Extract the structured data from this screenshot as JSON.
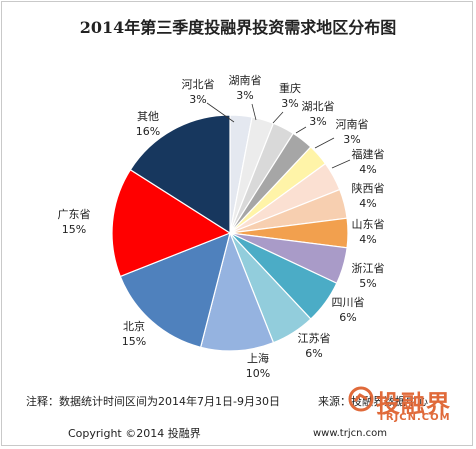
{
  "title": "2014年第三季度投融界投资需求地区分布图",
  "chart_data": {
    "type": "pie",
    "title": "2014年第三季度投融界投资需求地区分布图",
    "slices": [
      {
        "label": "河北省",
        "value": 3,
        "value_text": "3%",
        "color": "#e4e8f0"
      },
      {
        "label": "湖南省",
        "value": 3,
        "value_text": "3%",
        "color": "#ececec"
      },
      {
        "label": "重庆",
        "value": 3,
        "value_text": "3%",
        "color": "#d9d9d9"
      },
      {
        "label": "湖北省",
        "value": 3,
        "value_text": "3%",
        "color": "#a6a6a6"
      },
      {
        "label": "河南省",
        "value": 3,
        "value_text": "3%",
        "color": "#fff4a8"
      },
      {
        "label": "福建省",
        "value": 4,
        "value_text": "4%",
        "color": "#fbe0d2"
      },
      {
        "label": "陕西省",
        "value": 4,
        "value_text": "4%",
        "color": "#f7cfb0"
      },
      {
        "label": "山东省",
        "value": 4,
        "value_text": "4%",
        "color": "#f2a04e"
      },
      {
        "label": "浙江省",
        "value": 5,
        "value_text": "5%",
        "color": "#a99bc8"
      },
      {
        "label": "四川省",
        "value": 6,
        "value_text": "6%",
        "color": "#4bacc6"
      },
      {
        "label": "江苏省",
        "value": 6,
        "value_text": "6%",
        "color": "#92cddc"
      },
      {
        "label": "上海",
        "value": 10,
        "value_text": "10%",
        "color": "#95b3e0"
      },
      {
        "label": "北京",
        "value": 15,
        "value_text": "15%",
        "color": "#4f81bd"
      },
      {
        "label": "广东省",
        "value": 15,
        "value_text": "15%",
        "color": "#ff0000"
      },
      {
        "label": "其他",
        "value": 16,
        "value_text": "16%",
        "color": "#17375e"
      }
    ]
  },
  "footer": {
    "note": "注释：数据统计时间区间为2014年7月1日-9月30日",
    "source": "来源：投融界数据中心",
    "copyright": "Copyright ©2014 投融界",
    "site": "www.trjcn.com"
  },
  "logo": {
    "text": "投融界",
    "url": "TRJCN.COM",
    "color": "#e06a3a"
  }
}
